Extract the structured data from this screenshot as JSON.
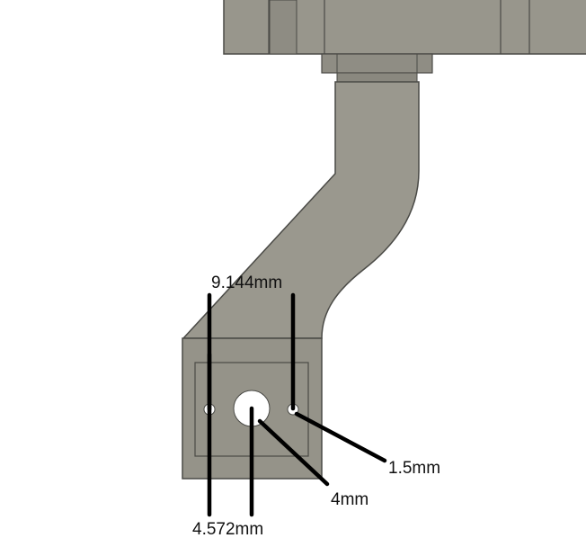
{
  "dimensions": {
    "top_span": "9.144mm",
    "bottom_span": "4.572mm",
    "large_hole": "4mm",
    "small_hole": "1.5mm"
  },
  "colors": {
    "part_face": "#959389",
    "part_face_light": "#a3a197",
    "part_edge": "#4a4a46",
    "hole_fill": "#ffffff",
    "dimension_line": "#000000",
    "background": "#ffffff"
  }
}
